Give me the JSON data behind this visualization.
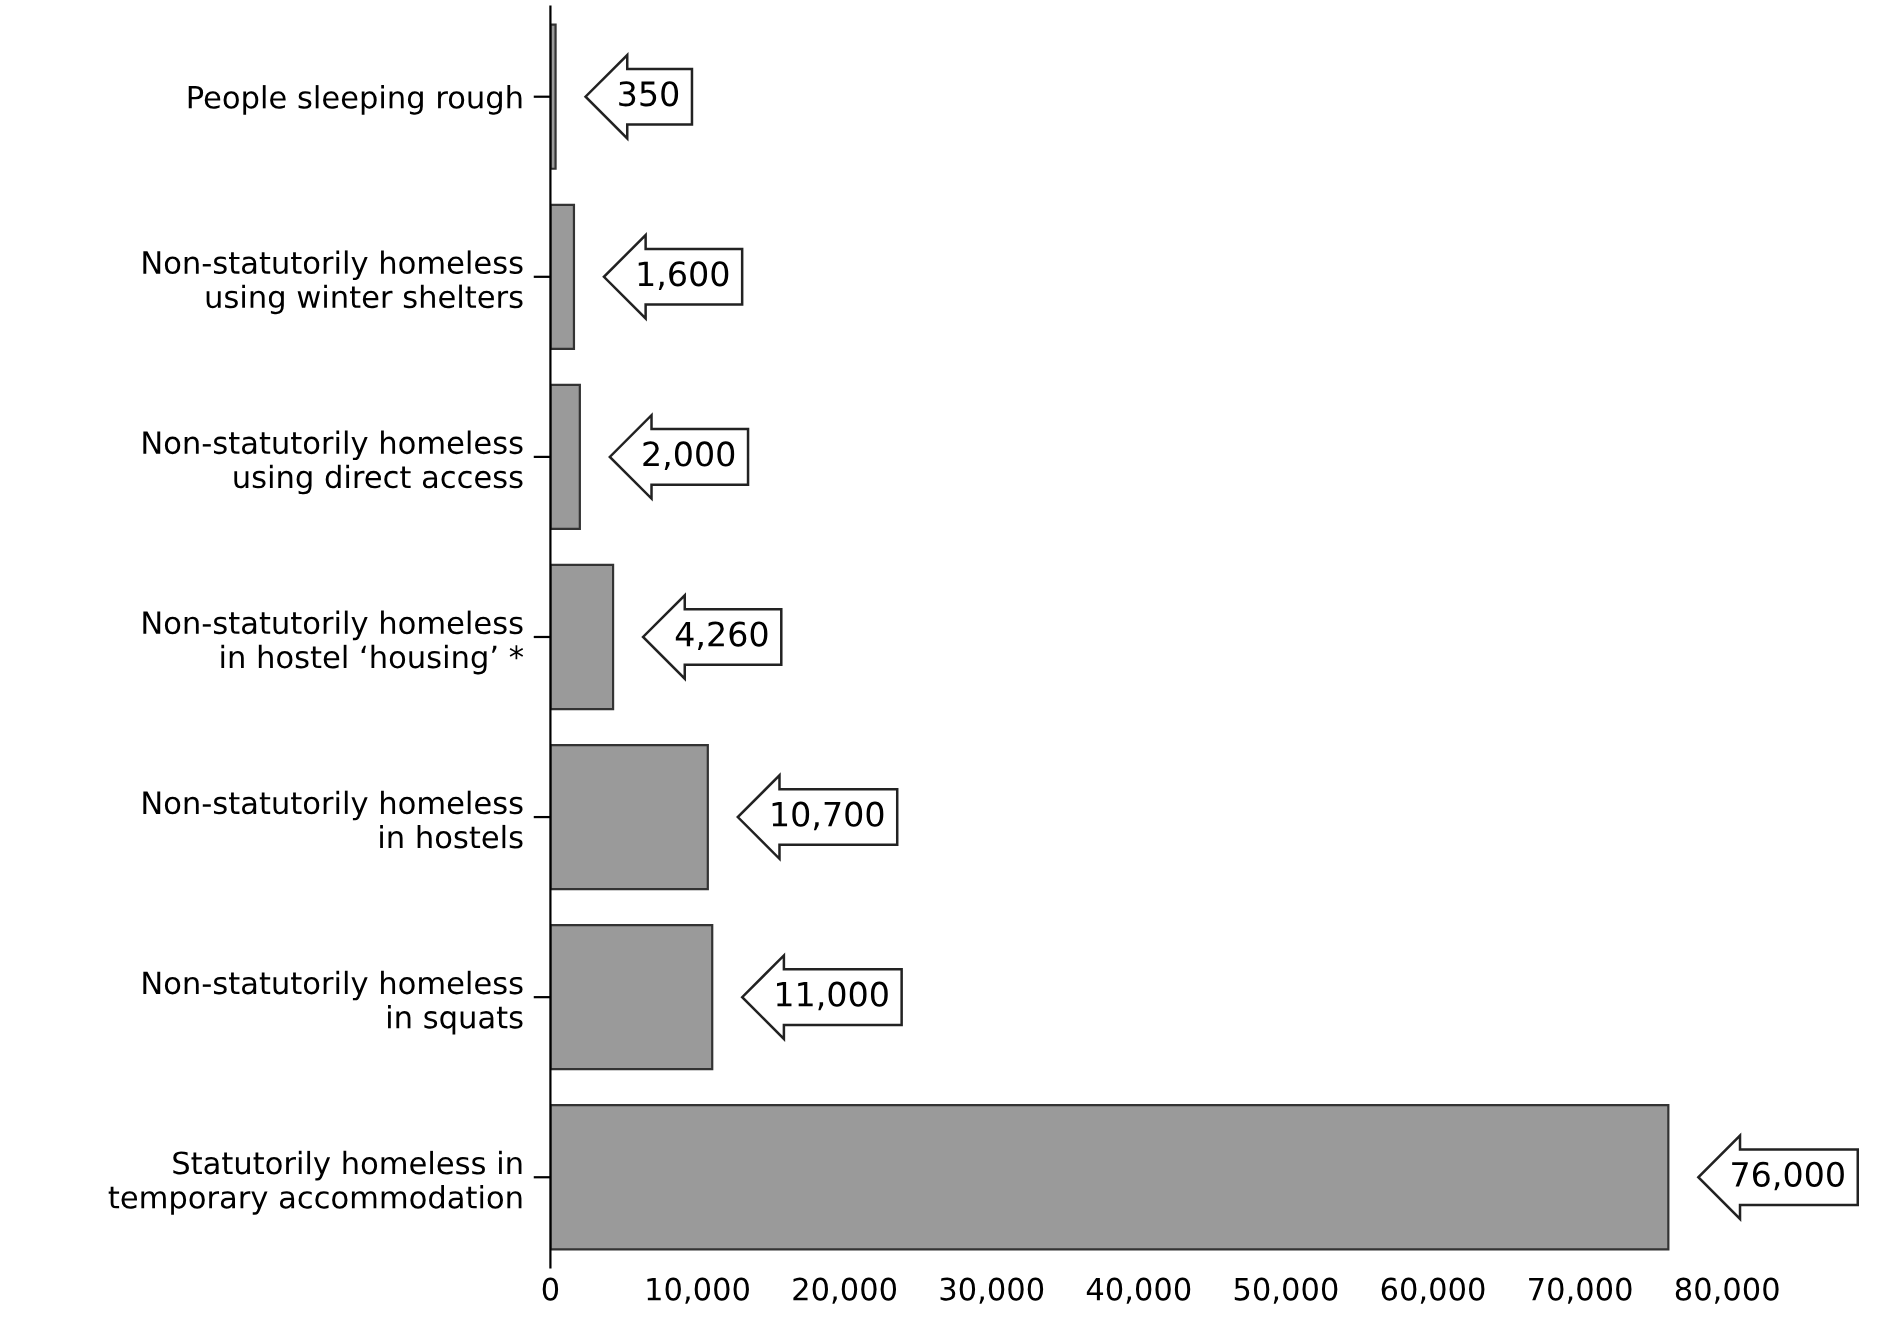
{
  "chart_data": {
    "type": "bar",
    "orientation": "horizontal",
    "categories": [
      "People sleeping rough",
      "Non-statutorily homeless\nusing winter shelters",
      "Non-statutorily homeless\nusing direct access",
      "Non-statutorily homeless\nin hostel ‘housing’ *",
      "Non-statutorily homeless\nin hostels",
      "Non-statutorily homeless\nin squats",
      "Statutorily homeless in\ntemporary accommodation"
    ],
    "values": [
      350,
      1600,
      2000,
      4260,
      10700,
      11000,
      76000
    ],
    "value_labels": [
      "350",
      "1,600",
      "2,000",
      "4,260",
      "10,700",
      "11,000",
      "76,000"
    ],
    "color": "#9a9a9a",
    "xlim": [
      0,
      80000
    ],
    "xticks": [
      0,
      {
        "value": 10000,
        "label": "10,000"
      },
      {
        "value": 20000,
        "label": "20,000"
      },
      {
        "value": 30000,
        "label": "30,000"
      },
      {
        "value": 40000,
        "label": "40,000"
      },
      {
        "value": 50000,
        "label": "50,000"
      },
      {
        "value": 60000,
        "label": "60,000"
      },
      {
        "value": 70000,
        "label": "70,000"
      },
      {
        "value": 80000,
        "label": "80,000"
      }
    ],
    "grid": false,
    "legend": false
  }
}
